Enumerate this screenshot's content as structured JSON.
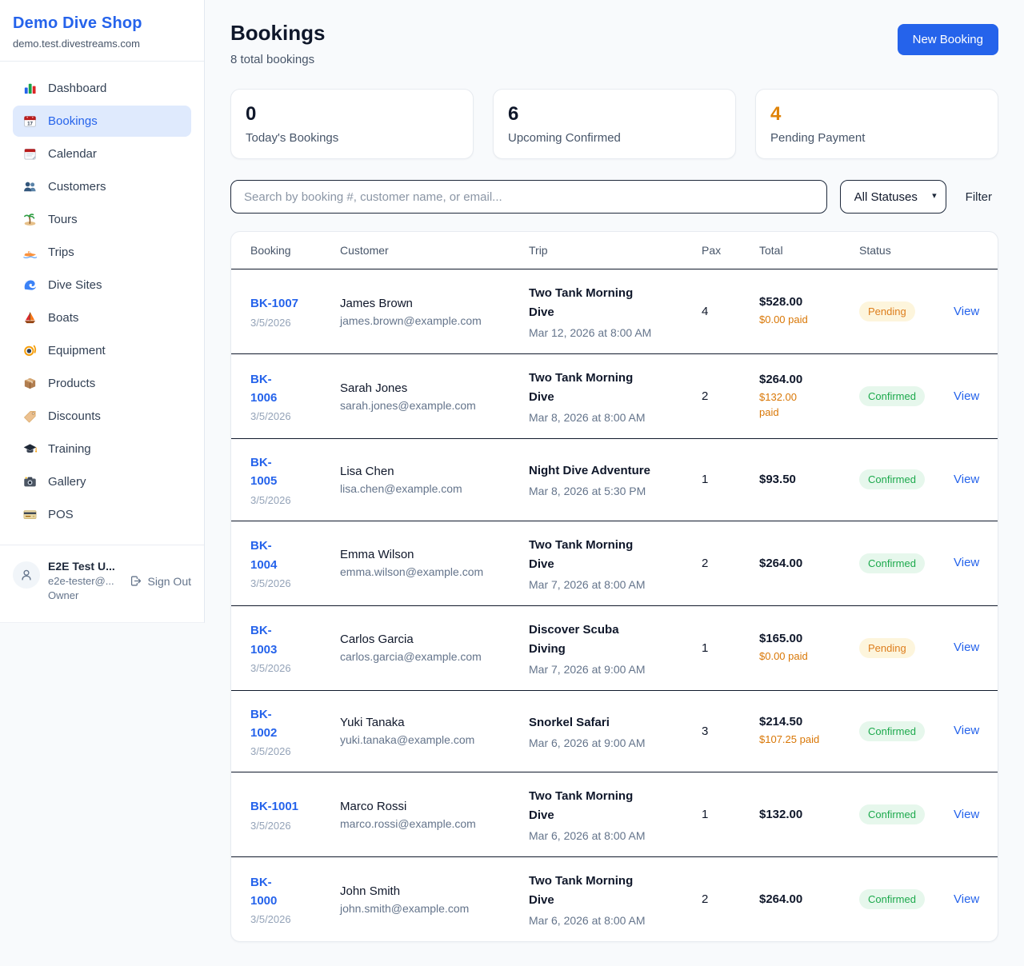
{
  "colors": {
    "accent": "#2563eb",
    "pending_text": "#dd7e1d",
    "pending_bg": "#fdf5dc",
    "confirmed_text": "#1ca94c",
    "confirmed_bg": "#e6f7ec",
    "paid_orange": "#d97706"
  },
  "sidebar": {
    "brand": "Demo Dive Shop",
    "domain": "demo.test.divestreams.com",
    "items": [
      {
        "label": "Dashboard",
        "icon": "dashboard-icon",
        "active": false
      },
      {
        "label": "Bookings",
        "icon": "bookings-icon",
        "active": true
      },
      {
        "label": "Calendar",
        "icon": "calendar-icon",
        "active": false
      },
      {
        "label": "Customers",
        "icon": "customers-icon",
        "active": false
      },
      {
        "label": "Tours",
        "icon": "tours-icon",
        "active": false
      },
      {
        "label": "Trips",
        "icon": "trips-icon",
        "active": false
      },
      {
        "label": "Dive Sites",
        "icon": "dive-sites-icon",
        "active": false
      },
      {
        "label": "Boats",
        "icon": "boats-icon",
        "active": false
      },
      {
        "label": "Equipment",
        "icon": "equipment-icon",
        "active": false
      },
      {
        "label": "Products",
        "icon": "products-icon",
        "active": false
      },
      {
        "label": "Discounts",
        "icon": "discounts-icon",
        "active": false
      },
      {
        "label": "Training",
        "icon": "training-icon",
        "active": false
      },
      {
        "label": "Gallery",
        "icon": "gallery-icon",
        "active": false
      },
      {
        "label": "POS",
        "icon": "pos-icon",
        "active": false
      }
    ],
    "user": {
      "name": "E2E Test U...",
      "email": "e2e-tester@...",
      "role": "Owner",
      "signout_label": "Sign Out"
    }
  },
  "header": {
    "title": "Bookings",
    "subtitle": "8 total bookings",
    "new_booking_label": "New Booking"
  },
  "stats": [
    {
      "value": "0",
      "label": "Today's Bookings",
      "color": "#0f172a"
    },
    {
      "value": "6",
      "label": "Upcoming Confirmed",
      "color": "#0f172a"
    },
    {
      "value": "4",
      "label": "Pending Payment",
      "color": "#df8309"
    }
  ],
  "filters": {
    "search_placeholder": "Search by booking #, customer name, or email...",
    "status_select": "All Statuses",
    "filter_label": "Filter"
  },
  "table": {
    "columns": [
      "Booking",
      "Customer",
      "Trip",
      "Pax",
      "Total",
      "Status"
    ],
    "view_label": "View",
    "rows": [
      {
        "id": "BK-1007",
        "date": "3/5/2026",
        "customer": "James Brown",
        "email": "james.brown@example.com",
        "trip": "Two Tank Morning\nDive",
        "when": "Mar 12, 2026 at 8:00 AM",
        "pax": "4",
        "total": "$528.00",
        "paid": "$0.00 paid",
        "status": "Pending"
      },
      {
        "id": "BK-\n1006",
        "date": "3/5/2026",
        "customer": "Sarah Jones",
        "email": "sarah.jones@example.com",
        "trip": "Two Tank Morning\nDive",
        "when": "Mar 8, 2026 at 8:00 AM",
        "pax": "2",
        "total": "$264.00",
        "paid": "$132.00\npaid",
        "status": "Confirmed"
      },
      {
        "id": "BK-\n1005",
        "date": "3/5/2026",
        "customer": "Lisa Chen",
        "email": "lisa.chen@example.com",
        "trip": "Night Dive Adventure",
        "when": "Mar 8, 2026 at 5:30 PM",
        "pax": "1",
        "total": "$93.50",
        "paid": "",
        "status": "Confirmed"
      },
      {
        "id": "BK-\n1004",
        "date": "3/5/2026",
        "customer": "Emma Wilson",
        "email": "emma.wilson@example.com",
        "trip": "Two Tank Morning\nDive",
        "when": "Mar 7, 2026 at 8:00 AM",
        "pax": "2",
        "total": "$264.00",
        "paid": "",
        "status": "Confirmed"
      },
      {
        "id": "BK-\n1003",
        "date": "3/5/2026",
        "customer": "Carlos Garcia",
        "email": "carlos.garcia@example.com",
        "trip": "Discover Scuba\nDiving",
        "when": "Mar 7, 2026 at 9:00 AM",
        "pax": "1",
        "total": "$165.00",
        "paid": "$0.00 paid",
        "status": "Pending"
      },
      {
        "id": "BK-\n1002",
        "date": "3/5/2026",
        "customer": "Yuki Tanaka",
        "email": "yuki.tanaka@example.com",
        "trip": "Snorkel Safari",
        "when": "Mar 6, 2026 at 9:00 AM",
        "pax": "3",
        "total": "$214.50",
        "paid": "$107.25 paid",
        "status": "Confirmed"
      },
      {
        "id": "BK-1001",
        "date": "3/5/2026",
        "customer": "Marco Rossi",
        "email": "marco.rossi@example.com",
        "trip": "Two Tank Morning\nDive",
        "when": "Mar 6, 2026 at 8:00 AM",
        "pax": "1",
        "total": "$132.00",
        "paid": "",
        "status": "Confirmed"
      },
      {
        "id": "BK-\n1000",
        "date": "3/5/2026",
        "customer": "John Smith",
        "email": "john.smith@example.com",
        "trip": "Two Tank Morning\nDive",
        "when": "Mar 6, 2026 at 8:00 AM",
        "pax": "2",
        "total": "$264.00",
        "paid": "",
        "status": "Confirmed"
      }
    ]
  }
}
